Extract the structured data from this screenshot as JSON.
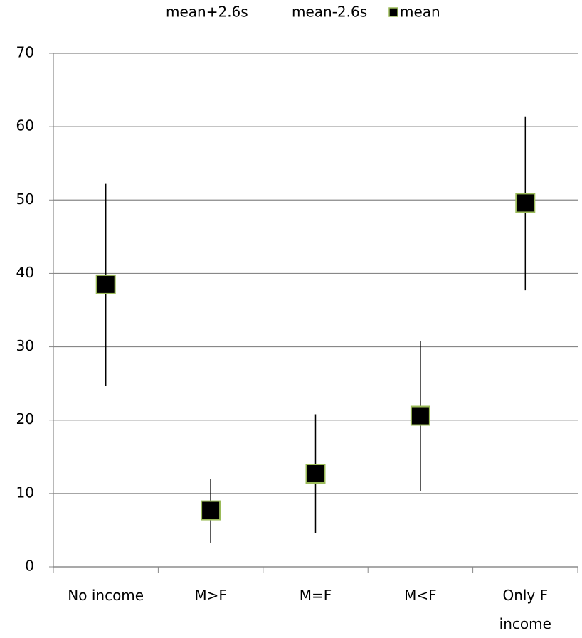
{
  "chart_data": {
    "type": "hilo",
    "categories": [
      "No income",
      "M>F",
      "M=F",
      "M<F",
      "Only F income"
    ],
    "series": [
      {
        "name": "mean+2.6s",
        "color": "#000000",
        "values": [
          52.3,
          12.0,
          20.8,
          30.8,
          61.4
        ]
      },
      {
        "name": "mean-2.6s",
        "color": "#000000",
        "values": [
          24.7,
          3.3,
          4.6,
          10.3,
          37.7
        ]
      },
      {
        "name": "mean",
        "color": "#000000",
        "edge_color": "#9bbb59",
        "values": [
          38.5,
          7.7,
          12.7,
          20.6,
          49.6
        ]
      }
    ],
    "ylim": [
      0,
      70
    ],
    "yticks": [
      0,
      10,
      20,
      30,
      40,
      50,
      60,
      70
    ],
    "grid": true,
    "legend": "top"
  }
}
